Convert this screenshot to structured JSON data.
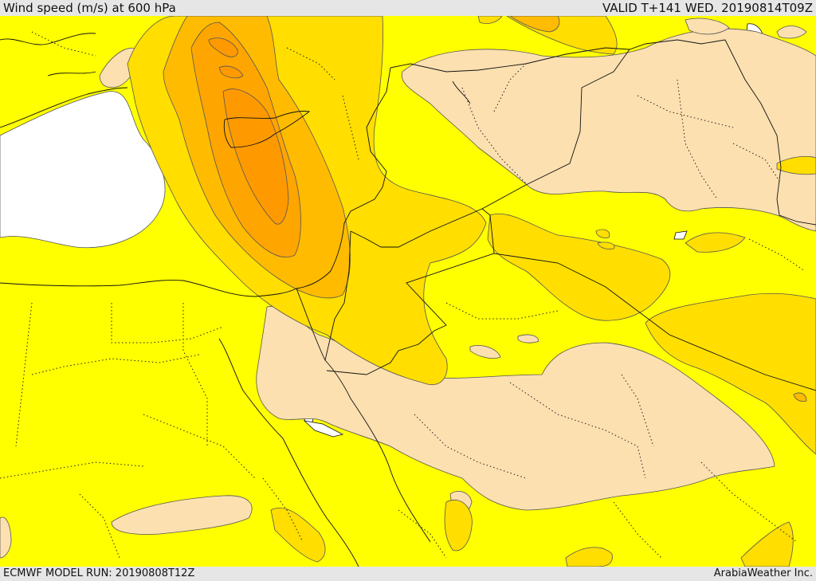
{
  "header": {
    "title": "Wind speed (m/s) at 600 hPa",
    "valid": "VALID T+141 WED. 20190814T09Z"
  },
  "footer": {
    "model_run": "ECMWF MODEL RUN: 20190808T12Z",
    "credit": "ArabiaWeather Inc."
  },
  "colors": {
    "background": "#ffff00",
    "light_band": "#fde0b0",
    "gold_band": "#ffde00",
    "orange_band": "#ffbb00",
    "dark_orange_band": "#ffa500",
    "deep_orange_band": "#ff9900",
    "water": "#ffffff"
  }
}
